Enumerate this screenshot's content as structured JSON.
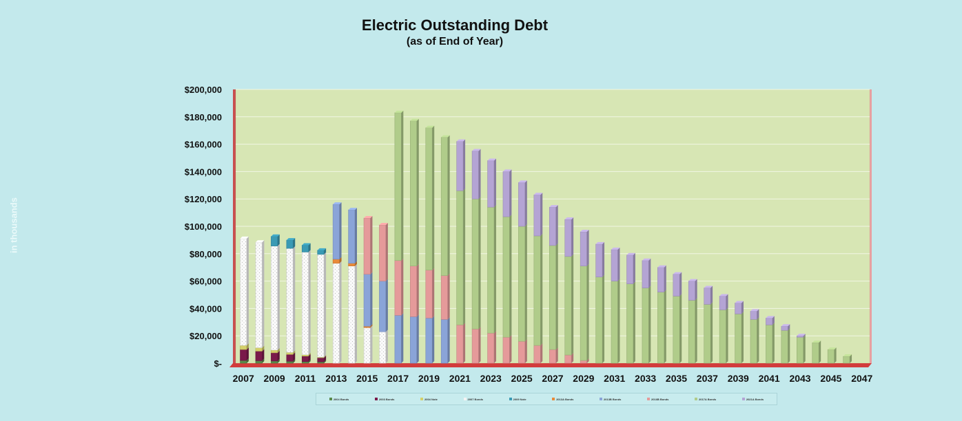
{
  "chart_data": {
    "type": "bar",
    "stacked": true,
    "title": "Electric Outstanding Debt",
    "subtitle": "(as of End of Year)",
    "ylabel": "in thousands",
    "ylim": [
      0,
      200000
    ],
    "yticks": [
      0,
      20000,
      40000,
      60000,
      80000,
      100000,
      120000,
      140000,
      160000,
      180000,
      200000
    ],
    "ytick_labels": [
      "$-",
      "$20,000",
      "$40,000",
      "$60,000",
      "$80,000",
      "$100,000",
      "$120,000",
      "$140,000",
      "$160,000",
      "$180,000",
      "$200,000"
    ],
    "categories": [
      "2007",
      "2008",
      "2009",
      "2010",
      "2011",
      "2012",
      "2013",
      "2014",
      "2015",
      "2016",
      "2017",
      "2018",
      "2019",
      "2020",
      "2021",
      "2022",
      "2023",
      "2024",
      "2025",
      "2026",
      "2027",
      "2028",
      "2029",
      "2030",
      "2031",
      "2032",
      "2033",
      "2034",
      "2035",
      "2036",
      "2037",
      "2038",
      "2039",
      "2040",
      "2041",
      "2042",
      "2043",
      "2044",
      "2045",
      "2046",
      "2047"
    ],
    "xtick_labels": [
      "2007",
      "2009",
      "2011",
      "2013",
      "2015",
      "2017",
      "2019",
      "2021",
      "2023",
      "2025",
      "2027",
      "2029",
      "2031",
      "2033",
      "2035",
      "2037",
      "2039",
      "2041",
      "2043",
      "2045",
      "2047"
    ],
    "grid": true,
    "legend_position": "bottom",
    "series": [
      {
        "name": "2004 Bonds",
        "color": "#5a8a4a",
        "values": [
          2000,
          1800,
          1600,
          1400,
          1200,
          1000,
          0,
          0,
          0,
          0,
          0,
          0,
          0,
          0,
          0,
          0,
          0,
          0,
          0,
          0,
          0,
          0,
          0,
          0,
          0,
          0,
          0,
          0,
          0,
          0,
          0,
          0,
          0,
          0,
          0,
          0,
          0,
          0,
          0,
          0,
          0
        ]
      },
      {
        "name": "2003 Bonds",
        "color": "#7a1a4a",
        "values": [
          8000,
          7000,
          6000,
          5000,
          4000,
          3000,
          0,
          0,
          0,
          0,
          0,
          0,
          0,
          0,
          0,
          0,
          0,
          0,
          0,
          0,
          0,
          0,
          0,
          0,
          0,
          0,
          0,
          0,
          0,
          0,
          0,
          0,
          0,
          0,
          0,
          0,
          0,
          0,
          0,
          0,
          0
        ]
      },
      {
        "name": "2004 Note",
        "color": "#d4d06a",
        "values": [
          3000,
          2500,
          2000,
          1500,
          1000,
          500,
          0,
          0,
          0,
          0,
          0,
          0,
          0,
          0,
          0,
          0,
          0,
          0,
          0,
          0,
          0,
          0,
          0,
          0,
          0,
          0,
          0,
          0,
          0,
          0,
          0,
          0,
          0,
          0,
          0,
          0,
          0,
          0,
          0,
          0,
          0
        ]
      },
      {
        "name": "2007 Bonds",
        "color": "#f4f4f4",
        "values": [
          78000,
          77000,
          76000,
          76000,
          75000,
          75000,
          73000,
          71000,
          26000,
          23000,
          0,
          0,
          0,
          0,
          0,
          0,
          0,
          0,
          0,
          0,
          0,
          0,
          0,
          0,
          0,
          0,
          0,
          0,
          0,
          0,
          0,
          0,
          0,
          0,
          0,
          0,
          0,
          0,
          0,
          0,
          0
        ]
      },
      {
        "name": "2009 Note",
        "color": "#3a9ab4",
        "values": [
          0,
          0,
          7000,
          6000,
          5000,
          3000,
          0,
          0,
          0,
          0,
          0,
          0,
          0,
          0,
          0,
          0,
          0,
          0,
          0,
          0,
          0,
          0,
          0,
          0,
          0,
          0,
          0,
          0,
          0,
          0,
          0,
          0,
          0,
          0,
          0,
          0,
          0,
          0,
          0,
          0,
          0
        ]
      },
      {
        "name": "2013A Bonds",
        "color": "#e88a3a",
        "values": [
          0,
          0,
          0,
          0,
          0,
          0,
          3000,
          2000,
          1000,
          0,
          0,
          0,
          0,
          0,
          0,
          0,
          0,
          0,
          0,
          0,
          0,
          0,
          0,
          0,
          0,
          0,
          0,
          0,
          0,
          0,
          0,
          0,
          0,
          0,
          0,
          0,
          0,
          0,
          0,
          0,
          0
        ]
      },
      {
        "name": "2013B Bonds",
        "color": "#8aa4d8",
        "values": [
          0,
          0,
          0,
          0,
          0,
          0,
          40000,
          39000,
          38000,
          37000,
          35000,
          34000,
          33000,
          32000,
          0,
          0,
          0,
          0,
          0,
          0,
          0,
          0,
          0,
          0,
          0,
          0,
          0,
          0,
          0,
          0,
          0,
          0,
          0,
          0,
          0,
          0,
          0,
          0,
          0,
          0,
          0
        ]
      },
      {
        "name": "2016B Bonds",
        "color": "#e59a9a",
        "values": [
          0,
          0,
          0,
          0,
          0,
          0,
          0,
          0,
          41000,
          41000,
          40000,
          37000,
          35000,
          32000,
          28000,
          25000,
          22000,
          19000,
          16000,
          13000,
          10000,
          6000,
          2000,
          0,
          0,
          0,
          0,
          0,
          0,
          0,
          0,
          0,
          0,
          0,
          0,
          0,
          0,
          0,
          0,
          0,
          0
        ]
      },
      {
        "name": "2017A Bonds",
        "color": "#b0cc8a",
        "values": [
          0,
          0,
          0,
          0,
          0,
          0,
          0,
          0,
          0,
          0,
          108000,
          106000,
          104000,
          101000,
          98000,
          95000,
          92000,
          88000,
          84000,
          80000,
          76000,
          72000,
          69000,
          63000,
          60000,
          58000,
          55000,
          52000,
          49000,
          46000,
          43000,
          39000,
          36000,
          32000,
          28000,
          24000,
          19000,
          15000,
          10000,
          5000,
          0
        ]
      },
      {
        "name": "2021A Bonds",
        "color": "#b4a4d4",
        "values": [
          0,
          0,
          0,
          0,
          0,
          0,
          0,
          0,
          0,
          0,
          0,
          0,
          0,
          0,
          36000,
          35000,
          34000,
          33000,
          32000,
          30000,
          28000,
          27000,
          25000,
          24000,
          23000,
          21000,
          20000,
          18000,
          16000,
          14000,
          12000,
          10000,
          8000,
          6000,
          5000,
          3000,
          1000,
          0,
          0,
          0,
          0
        ]
      }
    ]
  }
}
